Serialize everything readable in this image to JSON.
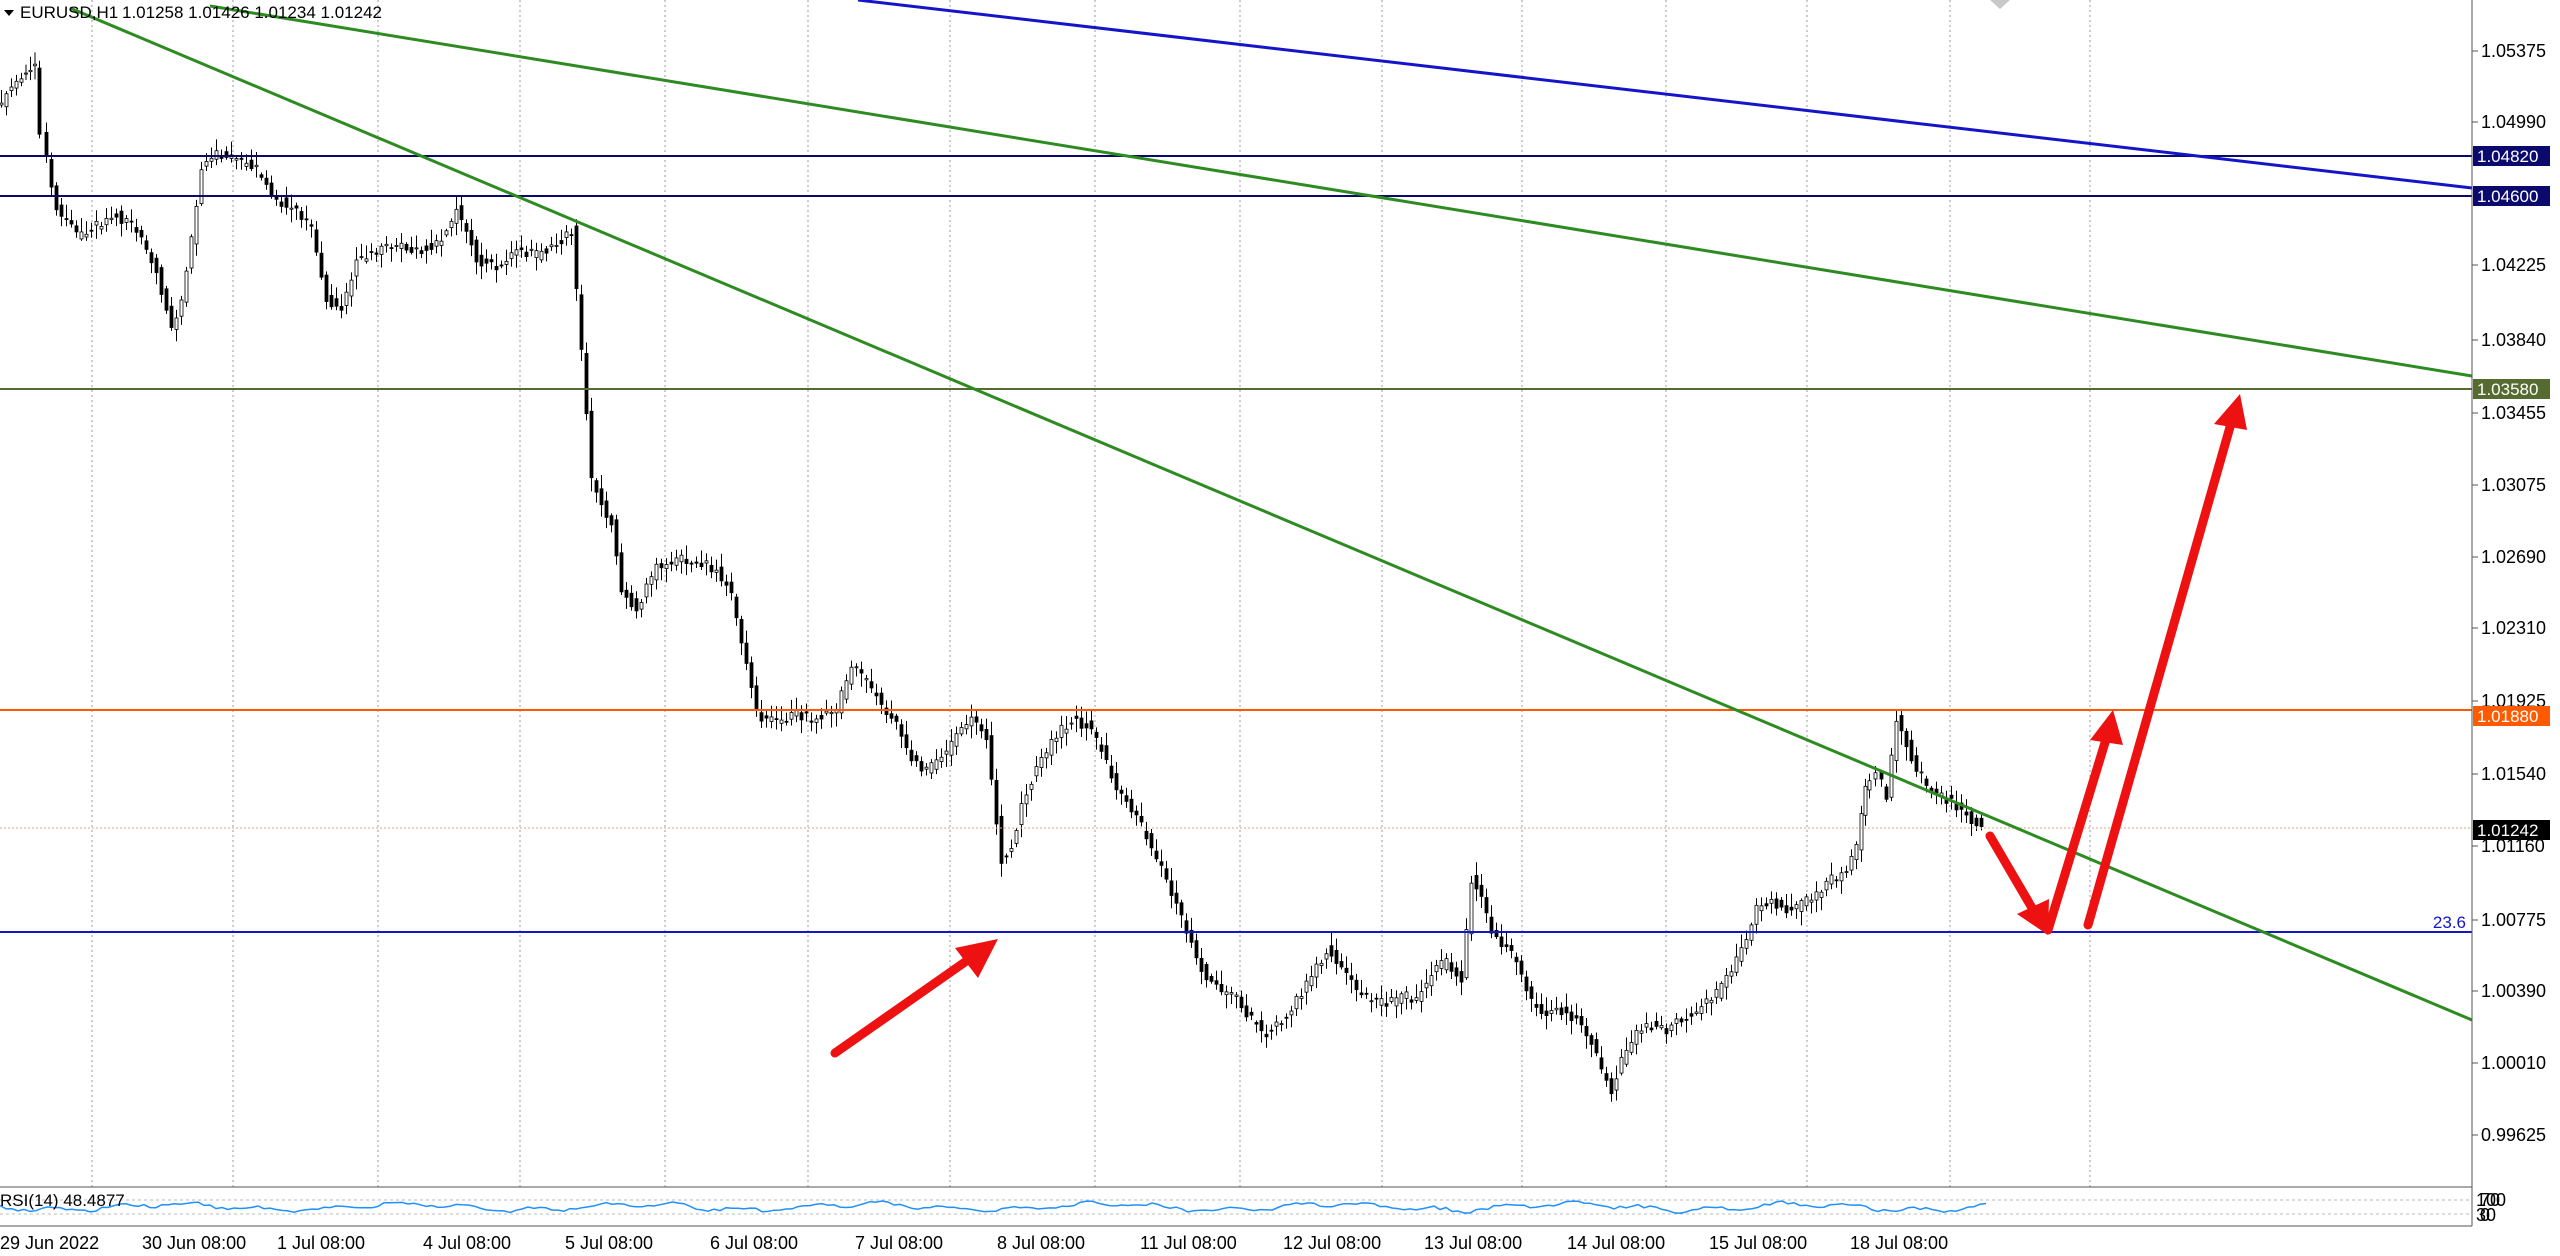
{
  "header": {
    "symbol_timeframe": "EURUSD,H1",
    "ohlc": "1.01258 1.01426 1.01234 1.01242"
  },
  "rsi": {
    "label": "RSI(14) 48.4877",
    "levels": [
      "100",
      "70",
      "30",
      "0"
    ]
  },
  "price_axis": {
    "ticks": [
      "1.05375",
      "1.04990",
      "1.04225",
      "1.03840",
      "1.03455",
      "1.03075",
      "1.02690",
      "1.02310",
      "1.01925",
      "1.01540",
      "1.01160",
      "1.00775",
      "1.00390",
      "1.00010",
      "0.99625"
    ]
  },
  "time_axis": {
    "ticks": [
      "29 Jun 2022",
      "30 Jun 08:00",
      "1 Jul 08:00",
      "4 Jul 08:00",
      "5 Jul 08:00",
      "6 Jul 08:00",
      "7 Jul 08:00",
      "8 Jul 08:00",
      "11 Jul 08:00",
      "12 Jul 08:00",
      "13 Jul 08:00",
      "14 Jul 08:00",
      "15 Jul 08:00",
      "18 Jul 08:00"
    ]
  },
  "level_labels": [
    {
      "text": "1.04820",
      "color": "#0a0a6e"
    },
    {
      "text": "1.04600",
      "color": "#0a0a6e"
    },
    {
      "text": "1.03580",
      "color": "#556b2f"
    },
    {
      "text": "1.01880",
      "color": "#ff5a00"
    },
    {
      "text": "1.01242",
      "color": "#000000"
    }
  ],
  "fibo_label": "23.6",
  "colors": {
    "candles": "#000000",
    "green_trendline": "#2e8b22",
    "blue_trendline": "#1414c8",
    "navy_level": "#0a0a6e",
    "olive_level": "#556b2f",
    "orange_level": "#ff5a00",
    "blue_level": "#1414c8",
    "arrows": "#ee1111",
    "rsi_line": "#1e90ff",
    "grid": "#9a9a9a"
  }
}
